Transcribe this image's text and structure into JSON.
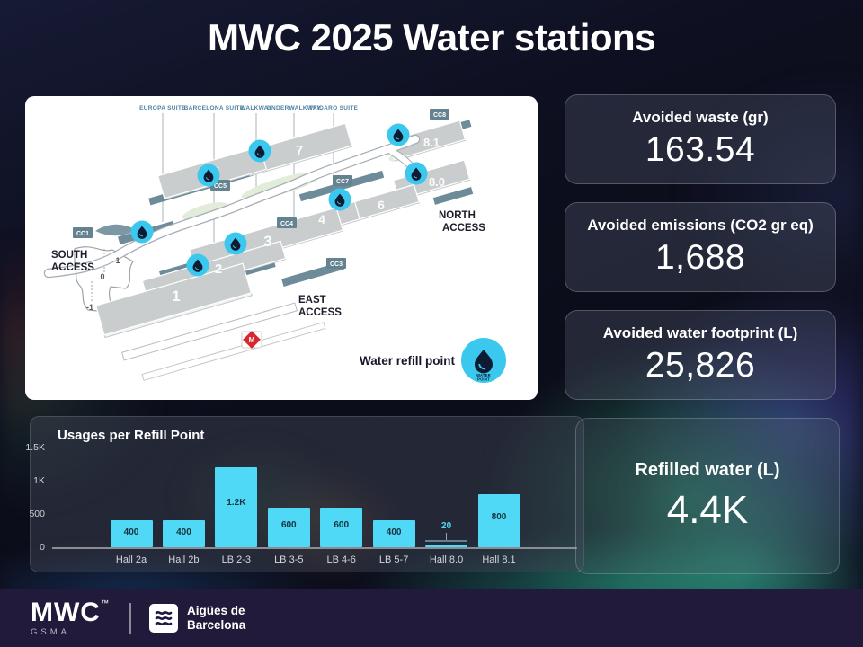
{
  "page": {
    "title": "MWC 2025 Water stations"
  },
  "map": {
    "suites": [
      "EUROPA SUITE",
      "BARCELONA SUITE",
      "WALKWAY",
      "UNDERWALKWAY",
      "TRIDARO SUITE"
    ],
    "halls": [
      "1",
      "2",
      "3",
      "4",
      "5",
      "6",
      "7",
      "8.0",
      "8.1"
    ],
    "cc": [
      "CC1",
      "CC3",
      "CC4",
      "CC5",
      "CC7",
      "CC8"
    ],
    "levels": [
      "1",
      "0",
      "-1"
    ],
    "access": {
      "south": [
        "SOUTH",
        "ACCESS"
      ],
      "east": [
        "EAST",
        "ACCESS"
      ],
      "north": [
        "NORTH",
        "ACCESS"
      ]
    },
    "metro": "M",
    "legend": {
      "label": "Water refill point",
      "badge": [
        "WATER",
        "POINT"
      ]
    },
    "marker_color": "#3bc8ef",
    "drop_color": "#0e1b33"
  },
  "stats": [
    {
      "label": "Avoided waste (gr)",
      "value": "163.54"
    },
    {
      "label": "Avoided emissions (CO2 gr eq)",
      "value": "1,688"
    },
    {
      "label": "Avoided water footprint (L)",
      "value": "25,826"
    }
  ],
  "refilled": {
    "label": "Refilled water (L)",
    "value": "4.4K"
  },
  "chart_data": {
    "type": "bar",
    "title": "Usages per Refill Point",
    "categories": [
      "Hall 2a",
      "Hall 2b",
      "LB 2-3",
      "LB 3-5",
      "LB 4-6",
      "LB 5-7",
      "Hall 8.0",
      "Hall 8.1"
    ],
    "values": [
      400,
      400,
      1200,
      600,
      600,
      400,
      20,
      800
    ],
    "value_labels": [
      "400",
      "400",
      "1.2K",
      "600",
      "600",
      "400",
      "20",
      "800"
    ],
    "xlabel": "",
    "ylabel": "",
    "ylim": [
      0,
      1500
    ],
    "grid": false,
    "legend_position": "none",
    "yticks": [
      {
        "label": "1.5K",
        "value": 1500
      },
      {
        "label": "1K",
        "value": 1000
      },
      {
        "label": "500",
        "value": 500
      },
      {
        "label": "0",
        "value": 0
      }
    ],
    "bar_color": "#4fd9f7",
    "label_color": "#14333d"
  },
  "footer": {
    "mwc": "MWC",
    "tm": "™",
    "gsma": "GSMA",
    "partner_lines": [
      "Aigües de",
      "Barcelona"
    ]
  }
}
